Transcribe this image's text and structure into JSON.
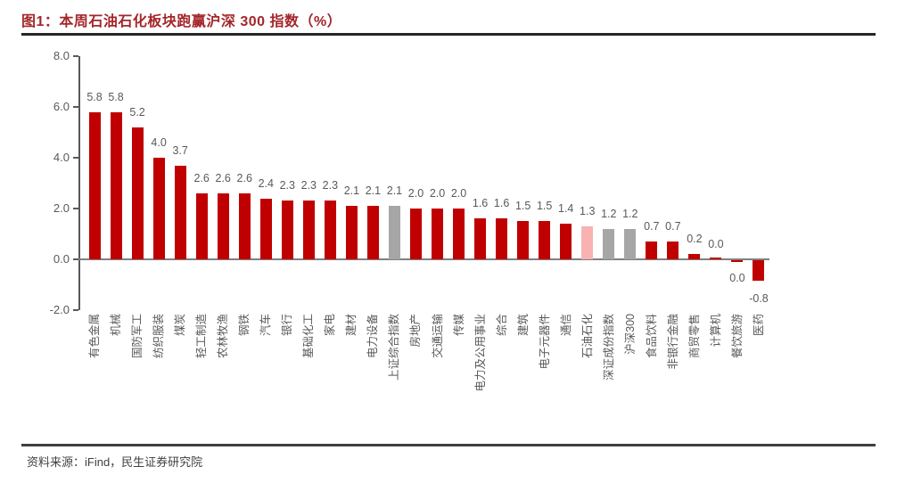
{
  "title": "图1：本周石油石化板块跑赢沪深 300 指数（%）",
  "source": "资料来源：iFind，民生证券研究院",
  "colors": {
    "title_text": "#A3262A",
    "title_rule": "#262626",
    "footer_rule": "#404040",
    "source_text": "#404040",
    "axis": "#595959",
    "zero_line": "#808080",
    "label_text": "#595959"
  },
  "chart_data": {
    "type": "bar",
    "title": "本周石油石化板块跑赢沪深 300 指数（%）",
    "xlabel": "",
    "ylabel": "",
    "ylim": [
      -2.0,
      8.0
    ],
    "yticks": [
      "8.0",
      "6.0",
      "4.0",
      "2.0",
      "0.0",
      "-2.0"
    ],
    "grid": false,
    "legend": "none",
    "colors": {
      "red": "#C00000",
      "gray": "#A6A6A6",
      "pink": "#F9B2B2"
    },
    "bars": [
      {
        "label": "有色金属",
        "value": 5.8,
        "color": "red",
        "side": "above"
      },
      {
        "label": "机械",
        "value": 5.8,
        "color": "red",
        "side": "above"
      },
      {
        "label": "国防军工",
        "value": 5.2,
        "color": "red",
        "side": "above"
      },
      {
        "label": "纺织服装",
        "value": 4.0,
        "color": "red",
        "side": "above"
      },
      {
        "label": "煤炭",
        "value": 3.7,
        "color": "red",
        "side": "above"
      },
      {
        "label": "轻工制造",
        "value": 2.6,
        "color": "red",
        "side": "above"
      },
      {
        "label": "农林牧渔",
        "value": 2.6,
        "color": "red",
        "side": "above"
      },
      {
        "label": "钢铁",
        "value": 2.6,
        "color": "red",
        "side": "above"
      },
      {
        "label": "汽车",
        "value": 2.4,
        "color": "red",
        "side": "above"
      },
      {
        "label": "银行",
        "value": 2.3,
        "color": "red",
        "side": "above"
      },
      {
        "label": "基础化工",
        "value": 2.3,
        "color": "red",
        "side": "above"
      },
      {
        "label": "家电",
        "value": 2.3,
        "color": "red",
        "side": "above"
      },
      {
        "label": "建材",
        "value": 2.1,
        "color": "red",
        "side": "above"
      },
      {
        "label": "电力设备",
        "value": 2.1,
        "color": "red",
        "side": "above"
      },
      {
        "label": "上证综合指数",
        "value": 2.1,
        "color": "gray",
        "side": "above"
      },
      {
        "label": "房地产",
        "value": 2.0,
        "color": "red",
        "side": "above"
      },
      {
        "label": "交通运输",
        "value": 2.0,
        "color": "red",
        "side": "above"
      },
      {
        "label": "传媒",
        "value": 2.0,
        "color": "red",
        "side": "above"
      },
      {
        "label": "电力及公用事业",
        "value": 1.6,
        "color": "red",
        "side": "above"
      },
      {
        "label": "综合",
        "value": 1.6,
        "color": "red",
        "side": "above"
      },
      {
        "label": "建筑",
        "value": 1.5,
        "color": "red",
        "side": "above"
      },
      {
        "label": "电子元器件",
        "value": 1.5,
        "color": "red",
        "side": "above"
      },
      {
        "label": "通信",
        "value": 1.4,
        "color": "red",
        "side": "above"
      },
      {
        "label": "石油石化",
        "value": 1.3,
        "color": "pink",
        "side": "above"
      },
      {
        "label": "深证成份指数",
        "value": 1.2,
        "color": "gray",
        "side": "above"
      },
      {
        "label": "沪深300",
        "value": 1.2,
        "color": "gray",
        "side": "above"
      },
      {
        "label": "食品饮料",
        "value": 0.7,
        "color": "red",
        "side": "above"
      },
      {
        "label": "非银行金融",
        "value": 0.7,
        "color": "red",
        "side": "above"
      },
      {
        "label": "商贸零售",
        "value": 0.2,
        "color": "red",
        "side": "above"
      },
      {
        "label": "计算机",
        "value": 0.0,
        "color": "red",
        "side": "above"
      },
      {
        "label": "餐饮旅游",
        "value": 0.0,
        "color": "red",
        "side": "below"
      },
      {
        "label": "医药",
        "value": -0.8,
        "color": "red",
        "side": "below"
      }
    ]
  }
}
